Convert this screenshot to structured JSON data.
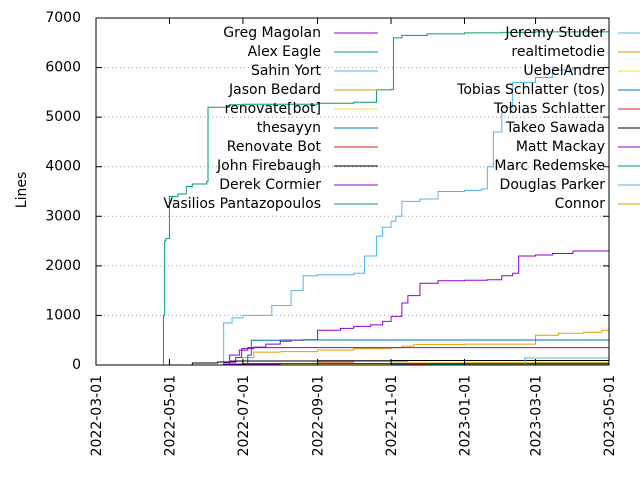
{
  "chart_data": {
    "type": "line",
    "title": "",
    "xlabel": "",
    "ylabel": "Lines",
    "xlim": [
      "2022-03-01",
      "2023-05-01"
    ],
    "ylim": [
      0,
      7000
    ],
    "x_ticks": [
      "2022-03-01",
      "2022-05-01",
      "2022-07-01",
      "2022-09-01",
      "2022-11-01",
      "2023-01-01",
      "2023-03-01",
      "2023-05-01"
    ],
    "y_ticks": [
      0,
      1000,
      2000,
      3000,
      4000,
      5000,
      6000,
      7000
    ],
    "grid": "horizontal dotted",
    "legend_position": "inside-top, two columns",
    "series": [
      {
        "name": "Greg Magolan",
        "color": "#9400d3",
        "step": true,
        "points": [
          [
            "2022-06-12",
            0
          ],
          [
            "2022-06-15",
            50
          ],
          [
            "2022-06-20",
            80
          ],
          [
            "2022-06-25",
            150
          ],
          [
            "2022-06-30",
            330
          ],
          [
            "2022-07-10",
            360
          ],
          [
            "2022-07-20",
            420
          ],
          [
            "2022-08-01",
            480
          ],
          [
            "2022-08-10",
            500
          ],
          [
            "2022-08-20",
            510
          ],
          [
            "2022-09-01",
            700
          ],
          [
            "2022-09-20",
            740
          ],
          [
            "2022-10-01",
            780
          ],
          [
            "2022-10-15",
            810
          ],
          [
            "2022-10-25",
            880
          ],
          [
            "2022-11-01",
            980
          ],
          [
            "2022-11-10",
            1250
          ],
          [
            "2022-11-15",
            1400
          ],
          [
            "2022-11-25",
            1650
          ],
          [
            "2022-12-10",
            1700
          ],
          [
            "2023-01-01",
            1710
          ],
          [
            "2023-01-20",
            1720
          ],
          [
            "2023-02-01",
            1800
          ],
          [
            "2023-02-10",
            1850
          ],
          [
            "2023-02-15",
            2200
          ],
          [
            "2023-03-01",
            2220
          ],
          [
            "2023-03-15",
            2250
          ],
          [
            "2023-04-01",
            2300
          ],
          [
            "2023-05-01",
            2300
          ]
        ]
      },
      {
        "name": "Alex Eagle",
        "color": "#009e73",
        "step": true,
        "points": [
          [
            "2022-04-25",
            0
          ],
          [
            "2022-06-15",
            10
          ],
          [
            "2022-11-01",
            30
          ],
          [
            "2023-05-01",
            35
          ]
        ]
      },
      {
        "name": "Sahin Yort",
        "color": "#56b4e9",
        "step": true,
        "points": [
          [
            "2022-06-12",
            0
          ],
          [
            "2022-06-15",
            850
          ],
          [
            "2022-06-22",
            950
          ],
          [
            "2022-07-01",
            1000
          ],
          [
            "2022-07-25",
            1200
          ],
          [
            "2022-08-10",
            1500
          ],
          [
            "2022-08-20",
            1800
          ],
          [
            "2022-09-01",
            1820
          ],
          [
            "2022-10-01",
            1850
          ],
          [
            "2022-10-10",
            2200
          ],
          [
            "2022-10-20",
            2600
          ],
          [
            "2022-10-25",
            2780
          ],
          [
            "2022-11-01",
            2900
          ],
          [
            "2022-11-05",
            3000
          ],
          [
            "2022-11-10",
            3300
          ],
          [
            "2022-11-25",
            3350
          ],
          [
            "2022-12-10",
            3500
          ],
          [
            "2023-01-01",
            3520
          ],
          [
            "2023-01-15",
            3550
          ],
          [
            "2023-01-20",
            4000
          ],
          [
            "2023-01-25",
            4700
          ],
          [
            "2023-02-01",
            5200
          ],
          [
            "2023-02-10",
            5700
          ],
          [
            "2023-03-01",
            5800
          ],
          [
            "2023-03-15",
            5950
          ],
          [
            "2023-04-01",
            6000
          ],
          [
            "2023-05-01",
            6000
          ]
        ]
      },
      {
        "name": "Jason Bedard",
        "color": "#e69f00",
        "step": true,
        "points": [
          [
            "2022-06-20",
            0
          ],
          [
            "2022-07-01",
            150
          ],
          [
            "2022-07-10",
            260
          ],
          [
            "2022-08-01",
            270
          ],
          [
            "2022-09-01",
            300
          ],
          [
            "2022-10-01",
            330
          ],
          [
            "2022-11-01",
            350
          ],
          [
            "2022-11-10",
            380
          ],
          [
            "2022-11-20",
            410
          ],
          [
            "2023-01-01",
            420
          ],
          [
            "2023-03-01",
            600
          ],
          [
            "2023-03-20",
            640
          ],
          [
            "2023-04-10",
            660
          ],
          [
            "2023-04-25",
            700
          ],
          [
            "2023-05-01",
            710
          ]
        ]
      },
      {
        "name": "renovate[bot]",
        "color": "#f0e442",
        "step": true,
        "points": [
          [
            "2022-06-01",
            0
          ],
          [
            "2022-07-01",
            15
          ],
          [
            "2022-09-01",
            25
          ],
          [
            "2022-11-01",
            35
          ],
          [
            "2023-01-01",
            45
          ],
          [
            "2023-03-01",
            55
          ],
          [
            "2023-05-01",
            60
          ]
        ]
      },
      {
        "name": "thesayyn",
        "color": "#0072b2",
        "step": true,
        "points": [
          [
            "2022-06-15",
            0
          ],
          [
            "2022-07-05",
            200
          ],
          [
            "2022-07-08",
            500
          ],
          [
            "2022-08-01",
            505
          ],
          [
            "2023-05-01",
            510
          ]
        ]
      },
      {
        "name": "Renovate Bot",
        "color": "#e51e10",
        "step": true,
        "points": [
          [
            "2022-06-05",
            0
          ],
          [
            "2022-07-01",
            30
          ],
          [
            "2022-09-01",
            60
          ],
          [
            "2022-10-01",
            80
          ],
          [
            "2022-11-15",
            90
          ],
          [
            "2023-05-01",
            95
          ]
        ]
      },
      {
        "name": "John Firebaugh",
        "color": "#000000",
        "step": true,
        "points": [
          [
            "2022-05-15",
            0
          ],
          [
            "2022-05-20",
            40
          ],
          [
            "2022-06-10",
            60
          ],
          [
            "2022-06-25",
            80
          ],
          [
            "2022-09-01",
            85
          ],
          [
            "2022-11-01",
            90
          ],
          [
            "2023-05-01",
            95
          ]
        ]
      },
      {
        "name": "Derek Cormier",
        "color": "#9400d3",
        "step": true,
        "points": [
          [
            "2022-06-01",
            0
          ],
          [
            "2022-06-20",
            200
          ],
          [
            "2022-06-28",
            300
          ],
          [
            "2022-07-05",
            350
          ],
          [
            "2023-05-01",
            360
          ]
        ]
      },
      {
        "name": "Vasilios Pantazopoulos",
        "color": "#009e73",
        "step": true,
        "points": [
          [
            "2022-04-25",
            0
          ],
          [
            "2022-04-26",
            1000
          ],
          [
            "2022-04-27",
            2500
          ],
          [
            "2022-04-28",
            2550
          ],
          [
            "2022-05-01",
            3400
          ],
          [
            "2022-05-08",
            3450
          ],
          [
            "2022-05-15",
            3600
          ],
          [
            "2022-05-20",
            3650
          ],
          [
            "2022-06-01",
            3700
          ],
          [
            "2022-06-02",
            5200
          ],
          [
            "2022-06-20",
            5250
          ],
          [
            "2022-07-01",
            5260
          ],
          [
            "2022-09-01",
            5280
          ],
          [
            "2022-10-01",
            5300
          ],
          [
            "2022-10-20",
            5550
          ],
          [
            "2022-11-01",
            5560
          ],
          [
            "2022-11-03",
            6600
          ],
          [
            "2022-11-10",
            6650
          ],
          [
            "2022-12-01",
            6680
          ],
          [
            "2023-01-01",
            6700
          ],
          [
            "2023-02-01",
            6710
          ],
          [
            "2023-03-01",
            6720
          ],
          [
            "2023-05-01",
            6730
          ]
        ]
      },
      {
        "name": "Jeremy Studer",
        "color": "#56b4e9",
        "step": true,
        "points": [
          [
            "2022-09-01",
            0
          ],
          [
            "2023-02-15",
            10
          ],
          [
            "2023-03-01",
            50
          ],
          [
            "2023-05-01",
            55
          ]
        ]
      },
      {
        "name": "realtimetodie",
        "color": "#e69f00",
        "step": true,
        "points": [
          [
            "2022-08-01",
            0
          ],
          [
            "2022-11-01",
            40
          ],
          [
            "2023-01-01",
            45
          ],
          [
            "2023-05-01",
            50
          ]
        ]
      },
      {
        "name": "UebelAndre",
        "color": "#f0e442",
        "step": true,
        "points": [
          [
            "2022-07-01",
            0
          ],
          [
            "2022-09-01",
            20
          ],
          [
            "2023-01-01",
            25
          ],
          [
            "2023-05-01",
            30
          ]
        ]
      },
      {
        "name": "Tobias Schlatter (tos)",
        "color": "#0072b2",
        "step": true,
        "points": [
          [
            "2022-10-01",
            0
          ],
          [
            "2022-11-01",
            20
          ],
          [
            "2023-05-01",
            20
          ]
        ]
      },
      {
        "name": "Tobias Schlatter",
        "color": "#e51e10",
        "step": true,
        "points": [
          [
            "2022-10-15",
            0
          ],
          [
            "2022-11-15",
            15
          ],
          [
            "2023-05-01",
            15
          ]
        ]
      },
      {
        "name": "Takeo Sawada",
        "color": "#000000",
        "step": true,
        "points": [
          [
            "2022-11-01",
            0
          ],
          [
            "2023-01-01",
            10
          ],
          [
            "2023-05-01",
            10
          ]
        ]
      },
      {
        "name": "Matt Mackay",
        "color": "#9400d3",
        "step": true,
        "points": [
          [
            "2022-06-10",
            0
          ],
          [
            "2022-06-15",
            20
          ],
          [
            "2022-08-01",
            30
          ],
          [
            "2023-05-01",
            35
          ]
        ]
      },
      {
        "name": "Marc Redemske",
        "color": "#009e73",
        "step": true,
        "points": [
          [
            "2022-10-01",
            0
          ],
          [
            "2022-12-01",
            10
          ],
          [
            "2023-05-01",
            10
          ]
        ]
      },
      {
        "name": "Douglas Parker",
        "color": "#56b4e9",
        "step": true,
        "points": [
          [
            "2023-02-15",
            0
          ],
          [
            "2023-02-20",
            140
          ],
          [
            "2023-05-01",
            150
          ]
        ]
      },
      {
        "name": "Connor",
        "color": "#e69f00",
        "step": true,
        "points": [
          [
            "2022-11-01",
            0
          ],
          [
            "2023-01-01",
            5
          ],
          [
            "2023-05-01",
            5
          ]
        ]
      }
    ]
  }
}
